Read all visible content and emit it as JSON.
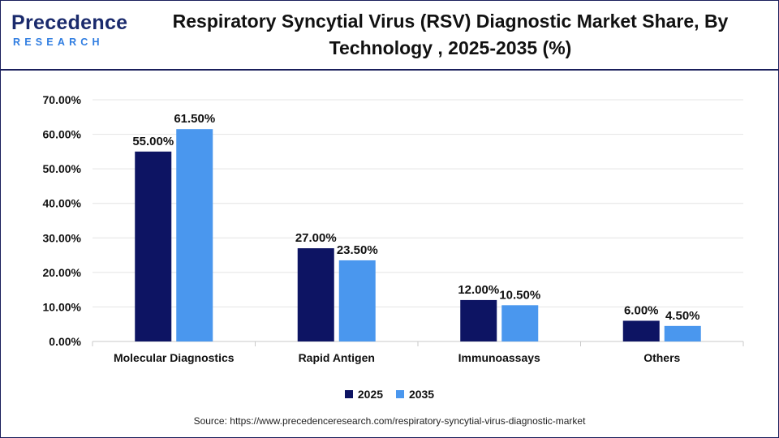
{
  "logo": {
    "top": "Precedence",
    "bottom": "RESEARCH"
  },
  "title": "Respiratory Syncytial Virus (RSV) Diagnostic Market Share, By Technology , 2025-2035 (%)",
  "source": "Source: https://www.precedenceresearch.com/respiratory-syncytial-virus-diagnostic-market",
  "colors": {
    "series_2025": "#0d1463",
    "series_2035": "#4a97ee",
    "grid": "#e4e4e4",
    "axis": "#c9c9c9"
  },
  "chart_data": {
    "type": "bar",
    "title": "Respiratory Syncytial Virus (RSV) Diagnostic Market Share, By Technology , 2025-2035 (%)",
    "categories": [
      "Molecular Diagnostics",
      "Rapid Antigen",
      "Immunoassays",
      "Others"
    ],
    "series": [
      {
        "name": "2025",
        "values": [
          55.0,
          27.0,
          12.0,
          6.0
        ],
        "labels": [
          "55.00%",
          "27.00%",
          "12.00%",
          "6.00%"
        ]
      },
      {
        "name": "2035",
        "values": [
          61.5,
          23.5,
          10.5,
          4.5
        ],
        "labels": [
          "61.50%",
          "23.50%",
          "10.50%",
          "4.50%"
        ]
      }
    ],
    "ylim": [
      0,
      70
    ],
    "yticks": [
      "0.00%",
      "10.00%",
      "20.00%",
      "30.00%",
      "40.00%",
      "50.00%",
      "60.00%",
      "70.00%"
    ],
    "grid": true,
    "legend": "bottom-center"
  }
}
